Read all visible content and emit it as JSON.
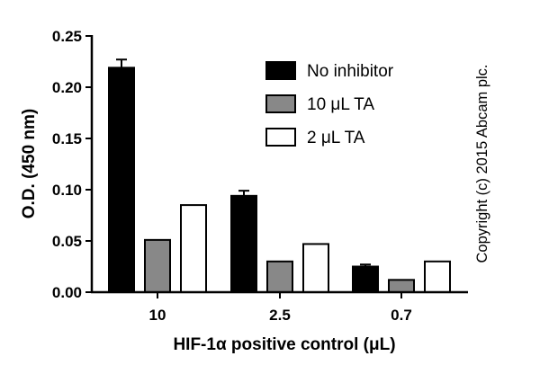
{
  "chart_data": {
    "type": "bar",
    "title": "",
    "xlabel": "HIF-1α positive control (μL)",
    "ylabel": "O.D. (450 nm)",
    "categories": [
      "10",
      "2.5",
      "0.7"
    ],
    "ylim": [
      0,
      0.25
    ],
    "yticks": [
      "0.00",
      "0.05",
      "0.10",
      "0.15",
      "0.20",
      "0.25"
    ],
    "series": [
      {
        "name": "No inhibitor",
        "values": [
          0.219,
          0.094,
          0.025
        ],
        "errors": [
          0.008,
          0.005,
          0.002
        ],
        "fill": "#000000"
      },
      {
        "name": "10 μL TA",
        "values": [
          0.051,
          0.03,
          0.012
        ],
        "errors": [
          0,
          0,
          0
        ],
        "fill": "#888888"
      },
      {
        "name": "2 μL TA",
        "values": [
          0.085,
          0.047,
          0.03
        ],
        "errors": [
          0,
          0,
          0
        ],
        "fill": "#ffffff"
      }
    ],
    "legend_position": "top-right",
    "annotation": "Copyright (c) 2015 Abcam plc."
  }
}
